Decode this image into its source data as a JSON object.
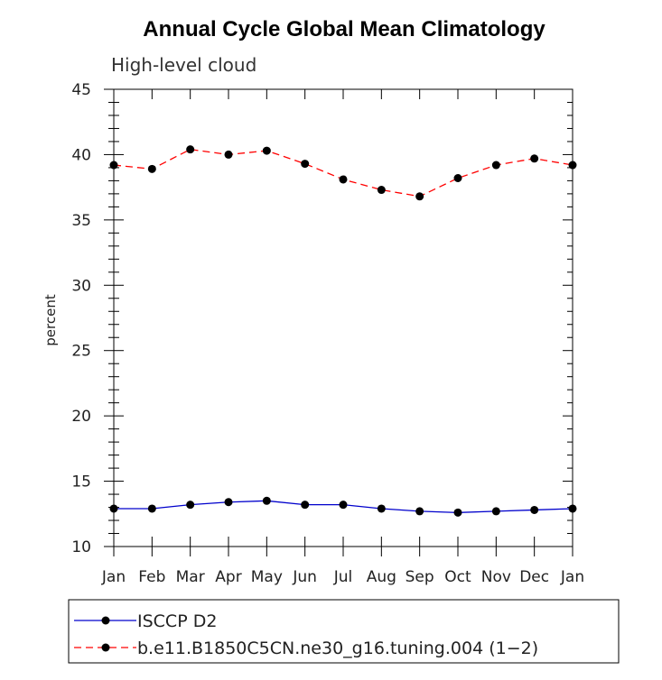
{
  "chart_data": {
    "type": "line",
    "title": "Annual Cycle Global Mean Climatology",
    "subtitle": "High-level cloud",
    "xlabel": "",
    "ylabel": "percent",
    "categories": [
      "Jan",
      "Feb",
      "Mar",
      "Apr",
      "May",
      "Jun",
      "Jul",
      "Aug",
      "Sep",
      "Oct",
      "Nov",
      "Dec",
      "Jan"
    ],
    "ylim": [
      10,
      45
    ],
    "yticks": [
      10,
      15,
      20,
      25,
      30,
      35,
      40,
      45
    ],
    "grid": false,
    "legend_placement": "bottom",
    "series": [
      {
        "name": "ISCCP D2",
        "color": "#0000cc",
        "line_style": "solid",
        "values": [
          12.9,
          12.9,
          13.2,
          13.4,
          13.5,
          13.2,
          13.2,
          12.9,
          12.7,
          12.6,
          12.7,
          12.8,
          12.9
        ]
      },
      {
        "name": "b.e11.B1850C5CN.ne30_g16.tuning.004 (1−2)",
        "color": "#ff0000",
        "line_style": "dashed",
        "values": [
          39.2,
          38.9,
          40.4,
          40.0,
          40.3,
          39.3,
          38.1,
          37.3,
          36.8,
          38.2,
          39.2,
          39.7,
          39.2
        ]
      }
    ]
  }
}
